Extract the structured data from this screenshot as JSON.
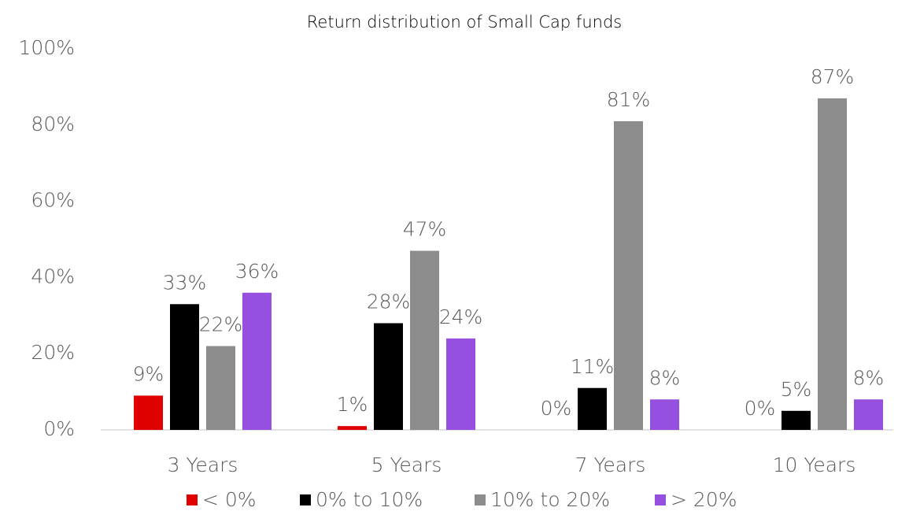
{
  "chart_data": {
    "type": "bar",
    "title": "Return distribution of Small Cap funds",
    "categories": [
      "3 Years",
      "5 Years",
      "7 Years",
      "10 Years"
    ],
    "series": [
      {
        "name": "< 0%",
        "color": "#e00000",
        "values": [
          9,
          1,
          0,
          0
        ],
        "value_labels": [
          "9%",
          "1%",
          "0%",
          "0%"
        ]
      },
      {
        "name": "0% to 10%",
        "color": "#000000",
        "values": [
          33,
          28,
          11,
          5
        ],
        "value_labels": [
          "33%",
          "28%",
          "11%",
          "5%"
        ]
      },
      {
        "name": "10% to 20%",
        "color": "#8c8c8c",
        "values": [
          22,
          47,
          81,
          87
        ],
        "value_labels": [
          "22%",
          "47%",
          "81%",
          "87%"
        ]
      },
      {
        "name": "> 20%",
        "color": "#9650e0",
        "values": [
          36,
          24,
          8,
          8
        ],
        "value_labels": [
          "36%",
          "24%",
          "8%",
          "8%"
        ]
      }
    ],
    "ylim": [
      0,
      100
    ],
    "yticks": [
      {
        "value": 0,
        "label": "0%"
      },
      {
        "value": 20,
        "label": "20%"
      },
      {
        "value": 40,
        "label": "40%"
      },
      {
        "value": 60,
        "label": "60%"
      },
      {
        "value": 80,
        "label": "80%"
      },
      {
        "value": 100,
        "label": "100%"
      }
    ],
    "grid": false,
    "legend": "bottom"
  }
}
